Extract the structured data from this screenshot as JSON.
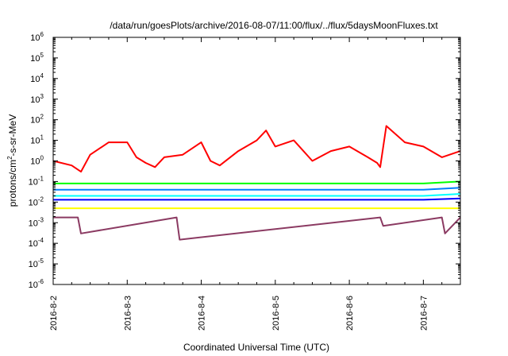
{
  "chart_data": {
    "type": "line",
    "title": "/data/run/goesPlots/archive/2016-08-07/11:00/flux/../flux/5daysMoonFluxes.txt",
    "xlabel": "Coordinated Universal Time (UTC)",
    "ylabel": "protons/cm²-s-sr-MeV",
    "ylabel_parts": {
      "pre": "protons/cm",
      "sup": "2",
      "post": "-s-sr-MeV"
    },
    "y_scale": "log",
    "ylim_exp": [
      -6,
      6
    ],
    "y_ticks": [
      {
        "base": "10",
        "exp": "-6"
      },
      {
        "base": "10",
        "exp": "-5"
      },
      {
        "base": "10",
        "exp": "-4"
      },
      {
        "base": "10",
        "exp": "-3"
      },
      {
        "base": "10",
        "exp": "-2"
      },
      {
        "base": "10",
        "exp": "-1"
      },
      {
        "base": "10",
        "exp": "0"
      },
      {
        "base": "10",
        "exp": "1"
      },
      {
        "base": "10",
        "exp": "2"
      },
      {
        "base": "10",
        "exp": "3"
      },
      {
        "base": "10",
        "exp": "4"
      },
      {
        "base": "10",
        "exp": "5"
      },
      {
        "base": "10",
        "exp": "6"
      }
    ],
    "x_ticks": [
      "2016-8-2",
      "2016-8-3",
      "2016-8-4",
      "2016-8-5",
      "2016-8-6",
      "2016-8-7"
    ],
    "x_range": [
      "2016-08-02 00:00",
      "2016-08-07 12:00"
    ],
    "grid": false,
    "legend": "none",
    "series": [
      {
        "color": "#ff0000",
        "x": [
          "2016-08-02 00:00",
          "2016-08-02 06:00",
          "2016-08-02 09:00",
          "2016-08-02 12:00",
          "2016-08-02 18:00",
          "2016-08-03 00:00",
          "2016-08-03 03:00",
          "2016-08-03 06:00",
          "2016-08-03 09:00",
          "2016-08-03 12:00",
          "2016-08-03 18:00",
          "2016-08-04 00:00",
          "2016-08-04 03:00",
          "2016-08-04 06:00",
          "2016-08-04 12:00",
          "2016-08-04 18:00",
          "2016-08-04 21:00",
          "2016-08-05 00:00",
          "2016-08-05 06:00",
          "2016-08-05 12:00",
          "2016-08-05 18:00",
          "2016-08-06 00:00",
          "2016-08-06 06:00",
          "2016-08-06 09:00",
          "2016-08-06 10:00",
          "2016-08-06 12:00",
          "2016-08-06 18:00",
          "2016-08-07 00:00",
          "2016-08-07 06:00",
          "2016-08-07 12:00"
        ],
        "y": [
          1.0,
          0.6,
          0.3,
          2,
          8,
          8,
          1.5,
          0.8,
          0.5,
          1.5,
          2,
          8,
          1,
          0.6,
          3,
          10,
          30,
          5,
          10,
          1,
          3,
          5,
          1.5,
          0.8,
          0.5,
          50,
          8,
          5,
          1.5,
          3
        ]
      },
      {
        "color": "#00ff00",
        "x": [
          "2016-08-02 00:00",
          "2016-08-03 00:00",
          "2016-08-04 00:00",
          "2016-08-05 00:00",
          "2016-08-06 00:00",
          "2016-08-07 00:00",
          "2016-08-07 12:00"
        ],
        "y": [
          0.08,
          0.08,
          0.08,
          0.08,
          0.08,
          0.08,
          0.1
        ]
      },
      {
        "color": "#0080ff",
        "x": [
          "2016-08-02 00:00",
          "2016-08-03 00:00",
          "2016-08-04 00:00",
          "2016-08-05 00:00",
          "2016-08-06 00:00",
          "2016-08-07 00:00",
          "2016-08-07 12:00"
        ],
        "y": [
          0.04,
          0.04,
          0.04,
          0.04,
          0.04,
          0.04,
          0.05
        ]
      },
      {
        "color": "#00ffff",
        "x": [
          "2016-08-02 00:00",
          "2016-08-03 00:00",
          "2016-08-04 00:00",
          "2016-08-05 00:00",
          "2016-08-06 00:00",
          "2016-08-07 00:00",
          "2016-08-07 12:00"
        ],
        "y": [
          0.02,
          0.02,
          0.02,
          0.02,
          0.02,
          0.02,
          0.025
        ]
      },
      {
        "color": "#0000ff",
        "x": [
          "2016-08-02 00:00",
          "2016-08-03 00:00",
          "2016-08-04 00:00",
          "2016-08-05 00:00",
          "2016-08-06 00:00",
          "2016-08-07 00:00",
          "2016-08-07 12:00"
        ],
        "y": [
          0.013,
          0.013,
          0.013,
          0.013,
          0.013,
          0.013,
          0.015
        ]
      },
      {
        "color": "#ffff00",
        "x": [
          "2016-08-02 00:00",
          "2016-08-03 00:00",
          "2016-08-04 00:00",
          "2016-08-05 00:00",
          "2016-08-06 00:00",
          "2016-08-07 00:00",
          "2016-08-07 12:00"
        ],
        "y": [
          0.005,
          0.005,
          0.005,
          0.005,
          0.005,
          0.005,
          0.005
        ]
      },
      {
        "color": "#8b3a62",
        "x": [
          "2016-08-02 00:00",
          "2016-08-02 08:00",
          "2016-08-02 09:00",
          "2016-08-03 16:00",
          "2016-08-03 17:00",
          "2016-08-06 10:00",
          "2016-08-06 11:00",
          "2016-08-07 06:00",
          "2016-08-07 07:00",
          "2016-08-07 12:00"
        ],
        "y": [
          0.0018,
          0.0018,
          0.0003,
          0.0018,
          0.00015,
          0.0018,
          0.0007,
          0.0018,
          0.0003,
          0.0018
        ]
      }
    ]
  }
}
